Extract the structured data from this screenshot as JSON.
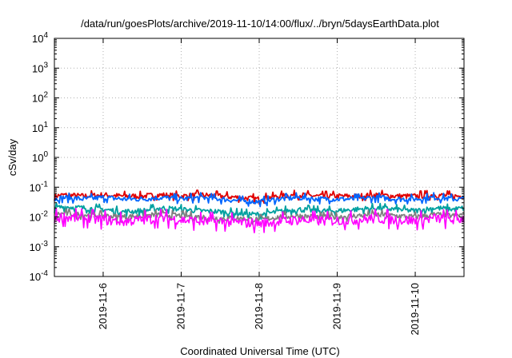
{
  "chart_data": {
    "type": "line",
    "title": "/data/run/goesPlots/archive/2019-11-10/14:00/flux/../bryn/5daysEarthData.plot",
    "xlabel": "Coordinated Universal Time (UTC)",
    "ylabel": "cSv/day",
    "y_scale": "log",
    "ylim": [
      0.0001,
      10000
    ],
    "y_ticks": [
      {
        "base": "10",
        "exp": "-4"
      },
      {
        "base": "10",
        "exp": "-3"
      },
      {
        "base": "10",
        "exp": "-2"
      },
      {
        "base": "10",
        "exp": "-1"
      },
      {
        "base": "10",
        "exp": "0"
      },
      {
        "base": "10",
        "exp": "1"
      },
      {
        "base": "10",
        "exp": "2"
      },
      {
        "base": "10",
        "exp": "3"
      },
      {
        "base": "10",
        "exp": "4"
      }
    ],
    "xlim": [
      "2019-11-05T09:00",
      "2019-11-10T15:00"
    ],
    "x_ticks": [
      "2019-11-6",
      "2019-11-7",
      "2019-11-8",
      "2019-11-9",
      "2019-11-10"
    ],
    "grid": true,
    "legend": "none",
    "series": [
      {
        "color": "#e00000",
        "style": "noisy band",
        "x": [
          "2019-11-05T09:00",
          "2019-11-05T12:00",
          "2019-11-05T18:00",
          "2019-11-06T00:00",
          "2019-11-06T06:00",
          "2019-11-06T12:00",
          "2019-11-06T18:00",
          "2019-11-07T00:00",
          "2019-11-07T06:00",
          "2019-11-07T12:00",
          "2019-11-07T18:00",
          "2019-11-08T00:00",
          "2019-11-08T06:00",
          "2019-11-08T12:00",
          "2019-11-08T18:00",
          "2019-11-09T00:00",
          "2019-11-09T06:00",
          "2019-11-09T12:00",
          "2019-11-09T18:00",
          "2019-11-10T00:00",
          "2019-11-10T06:00",
          "2019-11-10T12:00",
          "2019-11-10T15:00"
        ],
        "values": [
          0.05,
          0.055,
          0.05,
          0.055,
          0.05,
          0.05,
          0.055,
          0.05,
          0.055,
          0.05,
          0.045,
          0.04,
          0.05,
          0.055,
          0.05,
          0.05,
          0.05,
          0.055,
          0.05,
          0.05,
          0.055,
          0.05,
          0.05
        ]
      },
      {
        "color": "#0066ff",
        "style": "noisy band",
        "x": [
          "2019-11-05T09:00",
          "2019-11-05T12:00",
          "2019-11-05T18:00",
          "2019-11-06T00:00",
          "2019-11-06T06:00",
          "2019-11-06T12:00",
          "2019-11-06T18:00",
          "2019-11-07T00:00",
          "2019-11-07T06:00",
          "2019-11-07T12:00",
          "2019-11-07T18:00",
          "2019-11-08T00:00",
          "2019-11-08T06:00",
          "2019-11-08T12:00",
          "2019-11-08T18:00",
          "2019-11-09T00:00",
          "2019-11-09T06:00",
          "2019-11-09T12:00",
          "2019-11-09T18:00",
          "2019-11-10T00:00",
          "2019-11-10T06:00",
          "2019-11-10T12:00",
          "2019-11-10T15:00"
        ],
        "values": [
          0.04,
          0.045,
          0.04,
          0.045,
          0.04,
          0.04,
          0.045,
          0.04,
          0.045,
          0.04,
          0.035,
          0.032,
          0.04,
          0.045,
          0.04,
          0.04,
          0.04,
          0.045,
          0.04,
          0.04,
          0.045,
          0.04,
          0.04
        ]
      },
      {
        "color": "#00a0a0",
        "style": "noisy band",
        "x": [
          "2019-11-05T09:00",
          "2019-11-05T12:00",
          "2019-11-05T18:00",
          "2019-11-06T00:00",
          "2019-11-06T06:00",
          "2019-11-06T12:00",
          "2019-11-06T18:00",
          "2019-11-07T00:00",
          "2019-11-07T06:00",
          "2019-11-07T12:00",
          "2019-11-07T18:00",
          "2019-11-08T00:00",
          "2019-11-08T06:00",
          "2019-11-08T12:00",
          "2019-11-08T18:00",
          "2019-11-09T00:00",
          "2019-11-09T06:00",
          "2019-11-09T12:00",
          "2019-11-09T18:00",
          "2019-11-10T00:00",
          "2019-11-10T06:00",
          "2019-11-10T12:00",
          "2019-11-10T15:00"
        ],
        "values": [
          0.02,
          0.022,
          0.02,
          0.018,
          0.015,
          0.016,
          0.02,
          0.018,
          0.016,
          0.015,
          0.013,
          0.012,
          0.015,
          0.018,
          0.016,
          0.016,
          0.018,
          0.02,
          0.018,
          0.016,
          0.02,
          0.018,
          0.02
        ]
      },
      {
        "color": "#808080",
        "style": "noisy band",
        "x": [
          "2019-11-05T09:00",
          "2019-11-05T12:00",
          "2019-11-05T18:00",
          "2019-11-06T00:00",
          "2019-11-06T06:00",
          "2019-11-06T12:00",
          "2019-11-06T18:00",
          "2019-11-07T00:00",
          "2019-11-07T06:00",
          "2019-11-07T12:00",
          "2019-11-07T18:00",
          "2019-11-08T00:00",
          "2019-11-08T06:00",
          "2019-11-08T12:00",
          "2019-11-08T18:00",
          "2019-11-09T00:00",
          "2019-11-09T06:00",
          "2019-11-09T12:00",
          "2019-11-09T18:00",
          "2019-11-10T00:00",
          "2019-11-10T06:00",
          "2019-11-10T12:00",
          "2019-11-10T15:00"
        ],
        "values": [
          0.012,
          0.013,
          0.012,
          0.011,
          0.01,
          0.011,
          0.012,
          0.011,
          0.01,
          0.009,
          0.009,
          0.008,
          0.01,
          0.011,
          0.01,
          0.01,
          0.011,
          0.012,
          0.011,
          0.01,
          0.012,
          0.011,
          0.012
        ]
      },
      {
        "color": "#ff00ff",
        "style": "noisy band",
        "x": [
          "2019-11-05T09:00",
          "2019-11-05T12:00",
          "2019-11-05T18:00",
          "2019-11-06T00:00",
          "2019-11-06T06:00",
          "2019-11-06T12:00",
          "2019-11-06T18:00",
          "2019-11-07T00:00",
          "2019-11-07T06:00",
          "2019-11-07T12:00",
          "2019-11-07T18:00",
          "2019-11-08T00:00",
          "2019-11-08T06:00",
          "2019-11-08T12:00",
          "2019-11-08T18:00",
          "2019-11-09T00:00",
          "2019-11-09T06:00",
          "2019-11-09T12:00",
          "2019-11-09T18:00",
          "2019-11-10T00:00",
          "2019-11-10T06:00",
          "2019-11-10T12:00",
          "2019-11-10T15:00"
        ],
        "values": [
          0.009,
          0.01,
          0.009,
          0.008,
          0.007,
          0.008,
          0.009,
          0.008,
          0.007,
          0.007,
          0.0065,
          0.006,
          0.007,
          0.008,
          0.0075,
          0.0075,
          0.008,
          0.009,
          0.008,
          0.0075,
          0.009,
          0.008,
          0.009
        ]
      }
    ]
  }
}
